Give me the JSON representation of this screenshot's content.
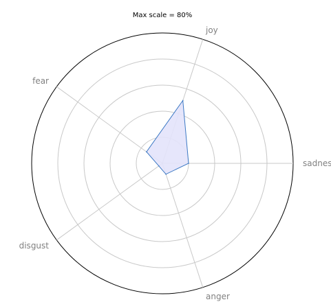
{
  "chart_data": {
    "type": "radar",
    "title": "Max scale = 80%",
    "axes": [
      "joy",
      "sadness",
      "anger",
      "disgust",
      "fear"
    ],
    "series": [
      {
        "values": [
          40.5,
          16.0,
          7.0,
          2.7,
          12.0
        ]
      }
    ],
    "rlim": [
      0,
      80
    ],
    "r_gridlines": [
      16,
      32,
      48,
      64,
      80
    ],
    "grid": true,
    "colors": {
      "line": "#3b78c4",
      "fill": "#e3e3fb",
      "grid": "#c8c8c8",
      "outer": "#000000",
      "label": "#808080"
    }
  }
}
